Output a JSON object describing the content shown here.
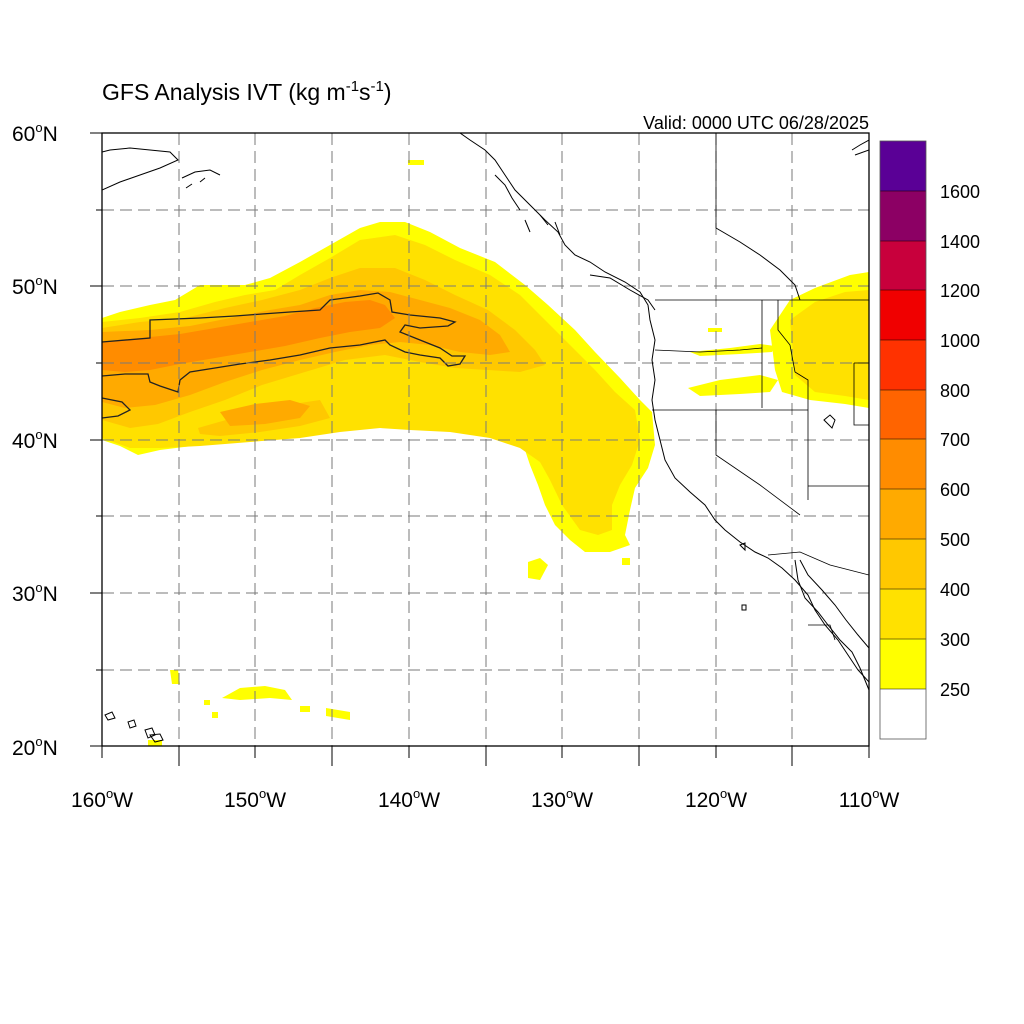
{
  "title": {
    "main": "GFS Analysis IVT (kg m",
    "exp1": "-1",
    "mid": "s",
    "exp2": "-1",
    "close": ")"
  },
  "valid_time": "Valid: 0000 UTC 06/28/2025",
  "degree_symbol": "o",
  "lat_ticks": [
    {
      "value": 60,
      "num": "60",
      "hemi": "N"
    },
    {
      "value": 50,
      "num": "50",
      "hemi": "N"
    },
    {
      "value": 40,
      "num": "40",
      "hemi": "N"
    },
    {
      "value": 30,
      "num": "30",
      "hemi": "N"
    },
    {
      "value": 20,
      "num": "20",
      "hemi": "N"
    }
  ],
  "lon_ticks": [
    {
      "value": -160,
      "num": "160",
      "hemi": "W"
    },
    {
      "value": -150,
      "num": "150",
      "hemi": "W"
    },
    {
      "value": -140,
      "num": "140",
      "hemi": "W"
    },
    {
      "value": -130,
      "num": "130",
      "hemi": "W"
    },
    {
      "value": -120,
      "num": "120",
      "hemi": "W"
    },
    {
      "value": -110,
      "num": "110",
      "hemi": "W"
    }
  ],
  "map_extent": {
    "lon_min": -160,
    "lon_max": -110,
    "lat_min": 20,
    "lat_max": 60
  },
  "colorbar": {
    "bins": [
      {
        "color": "#ffffff"
      },
      {
        "color": "#ffff00"
      },
      {
        "color": "#ffe100"
      },
      {
        "color": "#ffc800"
      },
      {
        "color": "#ffaa00"
      },
      {
        "color": "#ff8c00"
      },
      {
        "color": "#ff6400"
      },
      {
        "color": "#ff3200"
      },
      {
        "color": "#f00000"
      },
      {
        "color": "#c8003c"
      },
      {
        "color": "#8c0064"
      },
      {
        "color": "#5a0096"
      }
    ],
    "labels": [
      "250",
      "300",
      "400",
      "500",
      "600",
      "700",
      "800",
      "1000",
      "1200",
      "1400",
      "1600"
    ]
  },
  "ivt_shading": [
    {
      "level": "250",
      "color": "#ffff00"
    },
    {
      "level": "300",
      "color": "#ffe100"
    },
    {
      "level": "400",
      "color": "#ffc800"
    },
    {
      "level": "500",
      "color": "#ffaa00"
    },
    {
      "level": "600",
      "color": "#ff8c00"
    }
  ]
}
